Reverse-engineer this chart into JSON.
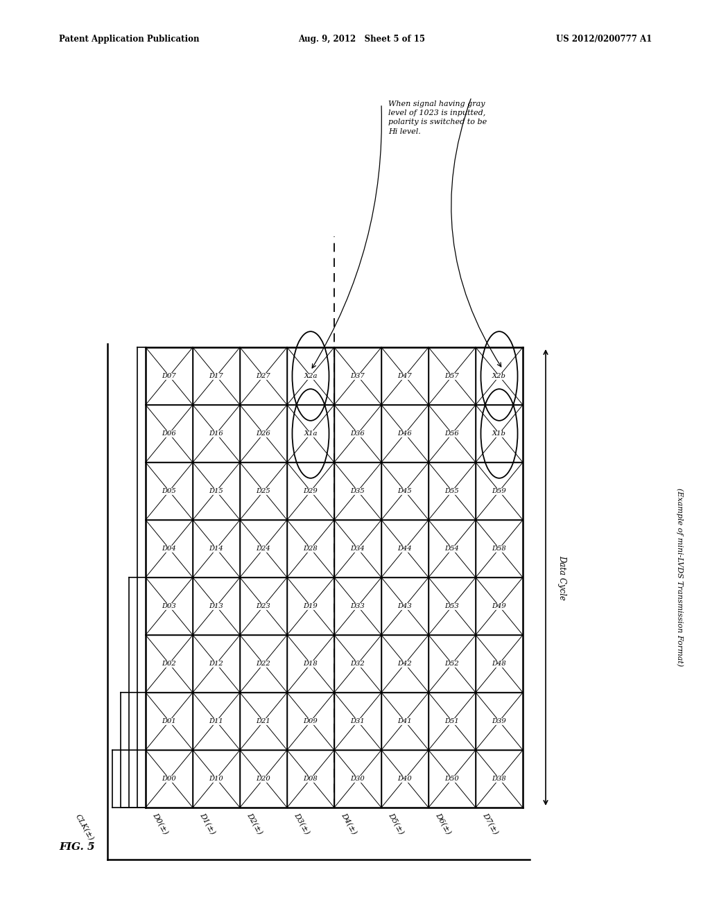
{
  "title_left": "Patent Application Publication",
  "title_center": "Aug. 9, 2012   Sheet 5 of 15",
  "title_right": "US 2012/0200777 A1",
  "fig_label": "FIG. 5",
  "clk_label": "CLK(±)",
  "col_labels": [
    "D0(±)",
    "D1(±)",
    "D2(±)",
    "D3(±)",
    "D4(±)",
    "D5(±)",
    "D6(±)",
    "D7(±)"
  ],
  "data_cycle_label": "Data Cycle",
  "example_label": "(Example of mini-LVDS Transmission Format)",
  "annotation_text": "When signal having gray\nlevel of 1023 is inputted,\npolarity is switched to be\nHi level.",
  "cell_data": [
    [
      "D00",
      "D01",
      "D02",
      "D03",
      "D04",
      "D05",
      "D06",
      "D07"
    ],
    [
      "D10",
      "D11",
      "D12",
      "D13",
      "D14",
      "D15",
      "D16",
      "D17"
    ],
    [
      "D20",
      "D21",
      "D22",
      "D23",
      "D24",
      "D25",
      "D26",
      "D27"
    ],
    [
      "D08",
      "D09",
      "D18",
      "D19",
      "D28",
      "D29",
      "X1a",
      "X2a"
    ],
    [
      "D30",
      "D31",
      "D32",
      "D33",
      "D34",
      "D35",
      "D36",
      "D37"
    ],
    [
      "D40",
      "D41",
      "D42",
      "D43",
      "D44",
      "D45",
      "D46",
      "D47"
    ],
    [
      "D50",
      "D51",
      "D52",
      "D53",
      "D54",
      "D55",
      "D56",
      "D57"
    ],
    [
      "D38",
      "D39",
      "D48",
      "D49",
      "D58",
      "D59",
      "X1b",
      "X2b"
    ]
  ],
  "special_cells": [
    "X1a",
    "X2a",
    "X1b",
    "X2b"
  ],
  "bg_color": "#ffffff"
}
